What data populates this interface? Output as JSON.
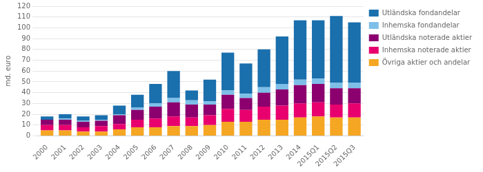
{
  "chart_data": {
    "type": "bar",
    "stacked": true,
    "ylabel": "md. euro",
    "categories": [
      "2000",
      "2001",
      "2002",
      "2003",
      "2004",
      "2005",
      "2006",
      "2007",
      "2008",
      "2009",
      "2010",
      "2011",
      "2012",
      "2013",
      "2014",
      "2015Q1",
      "2015Q2",
      "2015Q3"
    ],
    "series": [
      {
        "name": "Övriga aktier och andelar",
        "color": "#f5a623",
        "values": [
          5,
          5,
          4,
          4,
          6,
          8,
          8,
          9,
          9,
          10,
          13,
          13,
          15,
          15,
          17,
          18,
          17,
          17
        ]
      },
      {
        "name": "Inhemska noterade aktier",
        "color": "#e8006e",
        "values": [
          5,
          5,
          4,
          5,
          5,
          7,
          8,
          9,
          8,
          9,
          12,
          11,
          12,
          13,
          13,
          13,
          12,
          13
        ]
      },
      {
        "name": "Utländska noterade aktier",
        "color": "#8b006e",
        "values": [
          5,
          5,
          5,
          5,
          8,
          9,
          11,
          13,
          12,
          10,
          13,
          11,
          13,
          15,
          17,
          17,
          15,
          14
        ]
      },
      {
        "name": "Inhemska fondandelar",
        "color": "#7dbfe8",
        "values": [
          0,
          1,
          1,
          1,
          1,
          2,
          3,
          4,
          4,
          3,
          4,
          4,
          5,
          5,
          5,
          5,
          5,
          5
        ]
      },
      {
        "name": "Utländska fondandelar",
        "color": "#1a6fad",
        "values": [
          3,
          4,
          4,
          4,
          8,
          12,
          18,
          25,
          9,
          20,
          35,
          28,
          35,
          44,
          55,
          54,
          62,
          56
        ]
      }
    ],
    "ylim": [
      0,
      120
    ],
    "yticks": [
      0,
      10,
      20,
      30,
      40,
      50,
      60,
      70,
      80,
      90,
      100,
      110,
      120
    ],
    "grid": true,
    "legend": "right"
  }
}
